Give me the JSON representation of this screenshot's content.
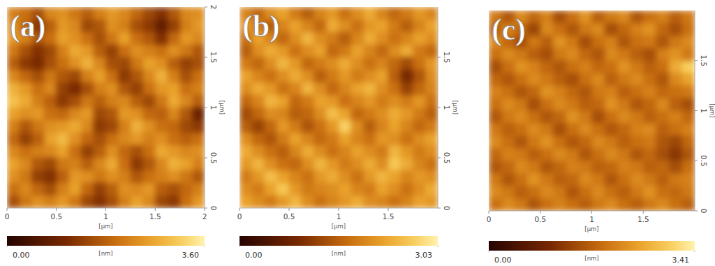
{
  "chart_data": [
    {
      "type": "heatmap",
      "title": "(a)",
      "x_label": "[µm]",
      "y_label": "[µm]",
      "xlim": [
        0,
        2
      ],
      "ylim": [
        0,
        2
      ],
      "xticks": [
        0,
        0.5,
        1,
        1.5,
        2
      ],
      "yticks": [
        0,
        0.5,
        1,
        1.5,
        2
      ],
      "colorbar_label": "[nm]",
      "colorbar_range": [
        0,
        3.6
      ],
      "colorbar_ticks": [
        {
          "value": 0,
          "label": "0.00"
        },
        {
          "value": 3.6,
          "label": "3.60"
        }
      ],
      "cells": [
        [
          2.2,
          2.0,
          1.6,
          2.3,
          2.4,
          2.1,
          1.8,
          2.2,
          2.5,
          2.3,
          1.9,
          1.5,
          1.2,
          1.7,
          2.3,
          2.4
        ],
        [
          2.4,
          1.9,
          1.3,
          1.8,
          2.5,
          2.3,
          1.5,
          1.7,
          2.4,
          2.2,
          1.6,
          1.3,
          0.8,
          1.4,
          2.2,
          2.5
        ],
        [
          2.5,
          2.2,
          1.7,
          2.0,
          2.6,
          2.4,
          2.0,
          1.6,
          2.1,
          2.6,
          2.0,
          1.7,
          1.2,
          1.9,
          2.5,
          2.3
        ],
        [
          2.1,
          1.6,
          1.2,
          1.5,
          2.2,
          2.7,
          2.5,
          1.8,
          1.4,
          2.0,
          2.4,
          2.2,
          2.0,
          2.4,
          2.1,
          1.7
        ],
        [
          1.8,
          1.3,
          1.1,
          1.6,
          2.0,
          2.4,
          2.8,
          2.3,
          1.6,
          1.5,
          2.1,
          2.6,
          2.4,
          1.8,
          1.4,
          1.6
        ],
        [
          2.3,
          1.9,
          1.6,
          2.1,
          1.7,
          1.5,
          2.2,
          2.6,
          2.0,
          1.3,
          1.7,
          2.3,
          2.8,
          2.2,
          1.6,
          2.0
        ],
        [
          2.8,
          2.5,
          2.0,
          2.3,
          1.4,
          1.1,
          1.6,
          2.2,
          2.4,
          1.7,
          1.4,
          2.0,
          2.5,
          2.6,
          2.0,
          2.2
        ],
        [
          3.0,
          2.7,
          2.2,
          1.8,
          1.3,
          1.6,
          2.1,
          1.8,
          2.2,
          2.3,
          1.8,
          1.5,
          2.1,
          2.7,
          2.3,
          1.8
        ],
        [
          2.6,
          2.4,
          2.5,
          2.0,
          1.9,
          2.3,
          2.5,
          1.5,
          1.7,
          2.5,
          2.4,
          1.9,
          1.8,
          2.3,
          1.7,
          0.9
        ],
        [
          2.2,
          1.7,
          2.1,
          2.4,
          2.5,
          2.7,
          2.3,
          1.3,
          1.5,
          2.2,
          2.8,
          2.4,
          2.0,
          1.9,
          1.5,
          1.3
        ],
        [
          1.9,
          1.4,
          1.8,
          2.6,
          2.9,
          2.4,
          1.9,
          1.6,
          2.0,
          2.3,
          2.5,
          2.2,
          2.4,
          2.0,
          1.8,
          2.0
        ],
        [
          2.3,
          2.0,
          2.2,
          2.3,
          2.6,
          2.0,
          1.4,
          1.8,
          2.4,
          1.9,
          1.6,
          2.0,
          2.7,
          2.5,
          2.3,
          2.4
        ],
        [
          2.6,
          2.3,
          1.7,
          1.5,
          2.1,
          2.2,
          1.8,
          2.3,
          2.7,
          2.0,
          1.3,
          1.7,
          2.3,
          2.8,
          2.6,
          2.2
        ],
        [
          2.4,
          2.1,
          1.4,
          1.2,
          1.8,
          2.5,
          2.4,
          2.1,
          2.4,
          2.2,
          1.7,
          2.0,
          2.2,
          2.4,
          2.1,
          1.7
        ],
        [
          2.0,
          2.3,
          1.9,
          1.6,
          2.2,
          2.6,
          1.9,
          1.4,
          1.8,
          2.4,
          2.3,
          2.5,
          1.8,
          1.6,
          1.9,
          2.2
        ],
        [
          1.6,
          2.1,
          2.4,
          2.2,
          2.5,
          2.1,
          1.5,
          1.2,
          1.6,
          2.2,
          2.6,
          2.3,
          1.5,
          1.3,
          2.0,
          2.5
        ]
      ]
    },
    {
      "type": "heatmap",
      "title": "(b)",
      "x_label": "[µm]",
      "y_label": "[µm]",
      "xlim": [
        0,
        2
      ],
      "ylim": [
        0,
        2
      ],
      "xticks": [
        0,
        0.5,
        1,
        1.5
      ],
      "yticks": [
        0,
        0.5,
        1,
        1.5
      ],
      "colorbar_label": "[nm]",
      "colorbar_range": [
        0,
        3.03
      ],
      "colorbar_ticks": [
        {
          "value": 0,
          "label": "0.00"
        },
        {
          "value": 3.03,
          "label": "3.03"
        }
      ],
      "cells": [
        [
          1.9,
          1.6,
          2.0,
          2.2,
          1.8,
          1.5,
          1.9,
          2.1,
          1.7,
          2.0,
          2.3,
          1.9,
          1.6,
          1.8,
          2.1,
          1.9
        ],
        [
          2.1,
          1.8,
          1.5,
          1.9,
          2.2,
          1.9,
          1.6,
          2.3,
          2.0,
          1.7,
          2.1,
          2.2,
          1.8,
          1.5,
          1.9,
          2.2
        ],
        [
          1.7,
          2.2,
          1.9,
          1.6,
          2.0,
          2.4,
          2.0,
          1.8,
          1.5,
          1.9,
          2.3,
          2.0,
          1.7,
          1.9,
          2.2,
          2.0
        ],
        [
          1.5,
          2.0,
          2.3,
          2.1,
          1.7,
          2.0,
          2.2,
          1.6,
          1.8,
          2.2,
          1.9,
          1.6,
          2.0,
          2.3,
          1.8,
          1.6
        ],
        [
          1.8,
          1.6,
          2.0,
          2.4,
          2.1,
          1.6,
          1.8,
          2.0,
          2.3,
          2.0,
          1.7,
          1.9,
          1.6,
          1.3,
          1.7,
          2.1
        ],
        [
          2.2,
          1.9,
          1.7,
          2.0,
          2.3,
          2.0,
          1.5,
          1.8,
          2.1,
          1.8,
          2.0,
          2.2,
          1.5,
          0.9,
          1.4,
          2.0
        ],
        [
          2.0,
          2.3,
          2.1,
          1.7,
          1.9,
          2.4,
          2.0,
          1.6,
          1.9,
          2.2,
          2.4,
          2.0,
          1.7,
          1.2,
          1.6,
          1.9
        ],
        [
          1.6,
          1.9,
          2.4,
          2.2,
          1.6,
          1.8,
          2.2,
          2.1,
          1.7,
          1.9,
          2.1,
          1.8,
          2.0,
          1.8,
          2.1,
          1.7
        ],
        [
          1.3,
          1.6,
          2.0,
          1.9,
          1.5,
          1.6,
          2.0,
          2.5,
          2.2,
          1.6,
          1.8,
          2.0,
          2.3,
          2.1,
          1.8,
          1.5
        ],
        [
          1.5,
          1.2,
          1.6,
          2.1,
          1.8,
          1.4,
          1.7,
          2.1,
          2.7,
          2.0,
          1.5,
          1.9,
          2.2,
          1.9,
          1.6,
          1.8
        ],
        [
          2.0,
          1.6,
          1.4,
          1.8,
          2.2,
          1.9,
          1.6,
          1.8,
          2.2,
          1.9,
          1.7,
          2.1,
          2.0,
          1.7,
          2.0,
          2.2
        ],
        [
          2.3,
          2.0,
          1.7,
          1.5,
          1.9,
          2.3,
          2.0,
          1.7,
          1.9,
          2.2,
          2.0,
          1.8,
          2.4,
          2.1,
          1.8,
          2.0
        ],
        [
          2.1,
          2.4,
          2.0,
          1.7,
          1.6,
          2.0,
          2.4,
          2.1,
          1.8,
          2.0,
          2.3,
          2.0,
          2.6,
          2.3,
          1.9,
          1.7
        ],
        [
          1.8,
          2.1,
          2.5,
          2.2,
          1.9,
          1.7,
          2.1,
          2.3,
          2.0,
          1.7,
          2.1,
          2.4,
          2.2,
          1.9,
          2.1,
          2.0
        ],
        [
          2.0,
          1.8,
          2.2,
          2.6,
          2.1,
          1.8,
          1.9,
          2.0,
          2.2,
          1.9,
          1.8,
          2.2,
          2.0,
          1.7,
          2.0,
          2.3
        ],
        [
          2.2,
          2.0,
          1.8,
          2.1,
          2.4,
          2.0,
          1.7,
          1.9,
          2.1,
          2.3,
          2.0,
          1.9,
          1.7,
          1.9,
          2.2,
          2.1
        ]
      ]
    },
    {
      "type": "heatmap",
      "title": "(c)",
      "x_label": "[µm]",
      "y_label": "[µm]",
      "xlim": [
        0,
        2
      ],
      "ylim": [
        0,
        2
      ],
      "xticks": [
        0,
        0.5,
        1,
        1.5
      ],
      "yticks": [
        0,
        0.5,
        1,
        1.5
      ],
      "colorbar_label": "[nm]",
      "colorbar_range": [
        0,
        3.41
      ],
      "colorbar_ticks": [
        {
          "value": 0,
          "label": "0.00"
        },
        {
          "value": 3.41,
          "label": "3.41"
        }
      ],
      "cells": [
        [
          2.0,
          1.6,
          2.2,
          1.8,
          2.1,
          1.5,
          1.9,
          2.3,
          1.7,
          2.0,
          2.2,
          1.6,
          1.9,
          2.1,
          1.7,
          2.0
        ],
        [
          1.7,
          2.1,
          1.8,
          1.4,
          2.2,
          1.9,
          1.6,
          2.0,
          2.2,
          1.5,
          1.8,
          2.1,
          2.3,
          1.8,
          1.5,
          1.9
        ],
        [
          2.2,
          1.8,
          1.5,
          2.0,
          1.7,
          2.3,
          2.0,
          1.5,
          1.9,
          2.1,
          1.6,
          1.9,
          2.0,
          1.6,
          2.0,
          2.2
        ],
        [
          1.9,
          2.2,
          2.0,
          1.7,
          1.5,
          2.0,
          2.2,
          1.8,
          1.6,
          2.2,
          2.0,
          1.7,
          1.5,
          2.1,
          2.3,
          2.0
        ],
        [
          1.5,
          1.9,
          2.3,
          2.1,
          1.8,
          1.6,
          1.9,
          2.1,
          1.8,
          1.9,
          2.3,
          2.0,
          1.7,
          1.9,
          2.6,
          3.0
        ],
        [
          1.8,
          1.6,
          1.9,
          2.2,
          2.0,
          1.7,
          1.5,
          1.9,
          2.2,
          1.7,
          2.0,
          2.2,
          1.9,
          1.6,
          2.2,
          2.5
        ],
        [
          2.1,
          1.9,
          1.6,
          1.8,
          2.3,
          2.1,
          1.8,
          1.6,
          2.0,
          2.1,
          1.7,
          1.9,
          2.1,
          1.8,
          1.9,
          2.0
        ],
        [
          1.9,
          2.2,
          2.0,
          1.5,
          1.9,
          2.2,
          2.0,
          1.7,
          1.8,
          2.3,
          2.0,
          1.6,
          1.8,
          2.2,
          1.7,
          1.5
        ],
        [
          1.6,
          2.0,
          2.2,
          1.9,
          1.6,
          1.8,
          2.3,
          2.0,
          1.5,
          1.9,
          2.2,
          2.0,
          1.7,
          1.9,
          2.1,
          1.8
        ],
        [
          2.0,
          1.7,
          1.9,
          2.2,
          2.0,
          1.5,
          1.9,
          2.2,
          1.9,
          1.6,
          1.8,
          2.1,
          2.2,
          1.7,
          1.9,
          2.1
        ],
        [
          2.2,
          1.9,
          1.6,
          2.0,
          2.3,
          1.9,
          1.6,
          1.8,
          2.2,
          2.0,
          1.7,
          1.9,
          2.0,
          1.6,
          1.4,
          1.8
        ],
        [
          1.8,
          2.1,
          2.0,
          1.7,
          1.9,
          2.2,
          2.0,
          1.6,
          1.9,
          2.2,
          2.0,
          1.6,
          1.8,
          1.5,
          1.2,
          1.6
        ],
        [
          1.6,
          1.8,
          2.2,
          2.0,
          1.6,
          1.8,
          2.1,
          2.0,
          1.7,
          1.8,
          2.1,
          2.0,
          1.7,
          1.8,
          1.5,
          1.9
        ],
        [
          2.0,
          1.6,
          1.9,
          2.3,
          2.0,
          1.7,
          1.8,
          2.2,
          2.0,
          1.6,
          1.9,
          2.2,
          2.0,
          1.7,
          2.0,
          2.1
        ],
        [
          2.2,
          2.0,
          1.7,
          1.9,
          2.2,
          2.0,
          1.6,
          1.9,
          2.2,
          1.9,
          1.7,
          2.0,
          2.3,
          1.9,
          1.8,
          2.0
        ],
        [
          1.9,
          2.2,
          2.0,
          1.6,
          1.9,
          2.1,
          1.9,
          1.7,
          2.0,
          2.2,
          1.9,
          1.7,
          2.0,
          2.2,
          1.9,
          1.7
        ]
      ]
    }
  ]
}
